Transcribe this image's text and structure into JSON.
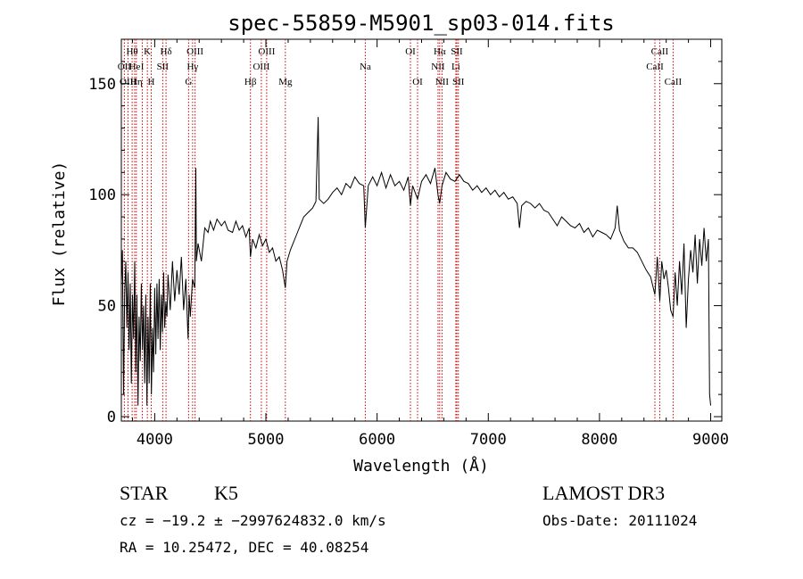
{
  "chart_data": {
    "type": "line",
    "title": "spec-55859-M5901_sp03-014.fits",
    "xlabel": "Wavelength (Å)",
    "ylabel": "Flux (relative)",
    "xlim": [
      3700,
      9100
    ],
    "ylim": [
      -2,
      170
    ],
    "x_ticks": [
      4000,
      5000,
      6000,
      7000,
      8000,
      9000
    ],
    "y_ticks": [
      0,
      50,
      100,
      150
    ],
    "grid": false,
    "line_color": "#000000",
    "marker_color": "#cc0000",
    "lines": [
      {
        "label": "Hθ",
        "wave": 3797,
        "row": 0
      },
      {
        "label": "OII",
        "wave": 3727,
        "row": 1
      },
      {
        "label": "OIII",
        "wave": 3760,
        "row": 2
      },
      {
        "label": "He",
        "wave": 3820,
        "row": 1
      },
      {
        "label": "Hη",
        "wave": 3835,
        "row": 2
      },
      {
        "label": "K",
        "wave": 3934,
        "row": 0
      },
      {
        "label": "H",
        "wave": 3969,
        "row": 2
      },
      {
        "label": "I",
        "wave": 3889,
        "row": 1
      },
      {
        "label": "Hδ",
        "wave": 4102,
        "row": 0
      },
      {
        "label": "SII",
        "wave": 4072,
        "row": 1
      },
      {
        "label": "OIII",
        "wave": 4363,
        "row": 0
      },
      {
        "label": "Hγ",
        "wave": 4341,
        "row": 1
      },
      {
        "label": "G",
        "wave": 4305,
        "row": 2
      },
      {
        "label": "Hβ",
        "wave": 4861,
        "row": 2
      },
      {
        "label": "OIII",
        "wave": 5007,
        "row": 0
      },
      {
        "label": "OIII",
        "wave": 4959,
        "row": 1
      },
      {
        "label": "Mg",
        "wave": 5175,
        "row": 2
      },
      {
        "label": "Na",
        "wave": 5894,
        "row": 1
      },
      {
        "label": "OI",
        "wave": 6300,
        "row": 0
      },
      {
        "label": "OI",
        "wave": 6364,
        "row": 2
      },
      {
        "label": "Hα",
        "wave": 6563,
        "row": 0
      },
      {
        "label": "NII",
        "wave": 6548,
        "row": 1
      },
      {
        "label": "NII",
        "wave": 6584,
        "row": 2
      },
      {
        "label": "SII",
        "wave": 6717,
        "row": 0
      },
      {
        "label": "Li",
        "wave": 6708,
        "row": 1
      },
      {
        "label": "SII",
        "wave": 6731,
        "row": 2
      },
      {
        "label": "CaII",
        "wave": 8542,
        "row": 0
      },
      {
        "label": "CaII",
        "wave": 8498,
        "row": 1
      },
      {
        "label": "CaII",
        "wave": 8662,
        "row": 2
      }
    ],
    "spectrum": [
      [
        3700,
        60
      ],
      [
        3710,
        75
      ],
      [
        3720,
        10
      ],
      [
        3730,
        55
      ],
      [
        3740,
        70
      ],
      [
        3750,
        40
      ],
      [
        3760,
        65
      ],
      [
        3770,
        30
      ],
      [
        3780,
        60
      ],
      [
        3790,
        15
      ],
      [
        3800,
        55
      ],
      [
        3810,
        35
      ],
      [
        3820,
        70
      ],
      [
        3830,
        20
      ],
      [
        3840,
        55
      ],
      [
        3850,
        5
      ],
      [
        3860,
        45
      ],
      [
        3870,
        25
      ],
      [
        3880,
        60
      ],
      [
        3890,
        30
      ],
      [
        3900,
        50
      ],
      [
        3910,
        15
      ],
      [
        3920,
        55
      ],
      [
        3930,
        5
      ],
      [
        3940,
        45
      ],
      [
        3950,
        15
      ],
      [
        3960,
        60
      ],
      [
        3970,
        10
      ],
      [
        3980,
        40
      ],
      [
        3990,
        20
      ],
      [
        4000,
        58
      ],
      [
        4010,
        28
      ],
      [
        4020,
        60
      ],
      [
        4030,
        35
      ],
      [
        4040,
        62
      ],
      [
        4050,
        30
      ],
      [
        4060,
        55
      ],
      [
        4070,
        38
      ],
      [
        4080,
        65
      ],
      [
        4090,
        40
      ],
      [
        4100,
        52
      ],
      [
        4110,
        45
      ],
      [
        4120,
        64
      ],
      [
        4140,
        48
      ],
      [
        4160,
        70
      ],
      [
        4180,
        52
      ],
      [
        4200,
        66
      ],
      [
        4220,
        55
      ],
      [
        4240,
        72
      ],
      [
        4260,
        48
      ],
      [
        4280,
        62
      ],
      [
        4300,
        35
      ],
      [
        4310,
        55
      ],
      [
        4320,
        45
      ],
      [
        4340,
        62
      ],
      [
        4360,
        58
      ],
      [
        4370,
        112
      ],
      [
        4375,
        70
      ],
      [
        4390,
        78
      ],
      [
        4420,
        70
      ],
      [
        4450,
        85
      ],
      [
        4480,
        83
      ],
      [
        4500,
        88
      ],
      [
        4530,
        84
      ],
      [
        4560,
        89
      ],
      [
        4600,
        86
      ],
      [
        4630,
        88
      ],
      [
        4660,
        84
      ],
      [
        4700,
        83
      ],
      [
        4730,
        88
      ],
      [
        4760,
        84
      ],
      [
        4790,
        86
      ],
      [
        4820,
        81
      ],
      [
        4850,
        85
      ],
      [
        4861,
        72
      ],
      [
        4880,
        80
      ],
      [
        4910,
        76
      ],
      [
        4940,
        82
      ],
      [
        4970,
        77
      ],
      [
        5000,
        80
      ],
      [
        5030,
        74
      ],
      [
        5060,
        76
      ],
      [
        5090,
        70
      ],
      [
        5120,
        72
      ],
      [
        5150,
        66
      ],
      [
        5175,
        58
      ],
      [
        5190,
        70
      ],
      [
        5220,
        75
      ],
      [
        5260,
        80
      ],
      [
        5300,
        85
      ],
      [
        5340,
        90
      ],
      [
        5380,
        92
      ],
      [
        5420,
        94
      ],
      [
        5450,
        97
      ],
      [
        5470,
        135
      ],
      [
        5480,
        98
      ],
      [
        5520,
        96
      ],
      [
        5560,
        98
      ],
      [
        5600,
        101
      ],
      [
        5640,
        103
      ],
      [
        5680,
        100
      ],
      [
        5720,
        105
      ],
      [
        5760,
        103
      ],
      [
        5800,
        108
      ],
      [
        5840,
        105
      ],
      [
        5880,
        104
      ],
      [
        5894,
        85
      ],
      [
        5920,
        104
      ],
      [
        5960,
        108
      ],
      [
        6000,
        104
      ],
      [
        6040,
        110
      ],
      [
        6080,
        103
      ],
      [
        6120,
        109
      ],
      [
        6160,
        104
      ],
      [
        6200,
        106
      ],
      [
        6240,
        102
      ],
      [
        6280,
        108
      ],
      [
        6300,
        95
      ],
      [
        6320,
        104
      ],
      [
        6364,
        98
      ],
      [
        6400,
        106
      ],
      [
        6440,
        109
      ],
      [
        6480,
        105
      ],
      [
        6520,
        112
      ],
      [
        6548,
        100
      ],
      [
        6563,
        96
      ],
      [
        6584,
        104
      ],
      [
        6620,
        110
      ],
      [
        6660,
        107
      ],
      [
        6700,
        106
      ],
      [
        6740,
        109
      ],
      [
        6780,
        106
      ],
      [
        6820,
        105
      ],
      [
        6860,
        102
      ],
      [
        6900,
        104
      ],
      [
        6940,
        101
      ],
      [
        6980,
        103
      ],
      [
        7020,
        100
      ],
      [
        7060,
        102
      ],
      [
        7100,
        99
      ],
      [
        7140,
        101
      ],
      [
        7180,
        98
      ],
      [
        7220,
        99
      ],
      [
        7260,
        96
      ],
      [
        7280,
        85
      ],
      [
        7300,
        95
      ],
      [
        7340,
        97
      ],
      [
        7380,
        96
      ],
      [
        7420,
        94
      ],
      [
        7460,
        96
      ],
      [
        7500,
        93
      ],
      [
        7540,
        92
      ],
      [
        7580,
        89
      ],
      [
        7620,
        86
      ],
      [
        7660,
        90
      ],
      [
        7700,
        88
      ],
      [
        7740,
        86
      ],
      [
        7780,
        85
      ],
      [
        7820,
        87
      ],
      [
        7860,
        83
      ],
      [
        7900,
        85
      ],
      [
        7940,
        81
      ],
      [
        7980,
        84
      ],
      [
        8020,
        83
      ],
      [
        8060,
        82
      ],
      [
        8100,
        80
      ],
      [
        8140,
        85
      ],
      [
        8160,
        95
      ],
      [
        8180,
        84
      ],
      [
        8220,
        79
      ],
      [
        8260,
        76
      ],
      [
        8300,
        76
      ],
      [
        8340,
        74
      ],
      [
        8380,
        70
      ],
      [
        8420,
        66
      ],
      [
        8460,
        63
      ],
      [
        8498,
        55
      ],
      [
        8520,
        72
      ],
      [
        8542,
        52
      ],
      [
        8560,
        70
      ],
      [
        8580,
        62
      ],
      [
        8600,
        66
      ],
      [
        8620,
        58
      ],
      [
        8640,
        48
      ],
      [
        8662,
        45
      ],
      [
        8680,
        65
      ],
      [
        8700,
        50
      ],
      [
        8720,
        70
      ],
      [
        8740,
        55
      ],
      [
        8760,
        78
      ],
      [
        8780,
        40
      ],
      [
        8800,
        62
      ],
      [
        8820,
        75
      ],
      [
        8840,
        65
      ],
      [
        8860,
        82
      ],
      [
        8880,
        60
      ],
      [
        8900,
        80
      ],
      [
        8920,
        68
      ],
      [
        8940,
        85
      ],
      [
        8960,
        70
      ],
      [
        8980,
        80
      ],
      [
        8990,
        10
      ],
      [
        9000,
        5
      ]
    ]
  },
  "info": {
    "object_class": "STAR",
    "subclass": "K5",
    "survey": "LAMOST DR3",
    "velocity": "cz = −19.2 ± −2997624832.0 km/s",
    "obs_date": "Obs-Date: 20111024",
    "coords": "RA =  10.25472, DEC =  40.08254"
  }
}
